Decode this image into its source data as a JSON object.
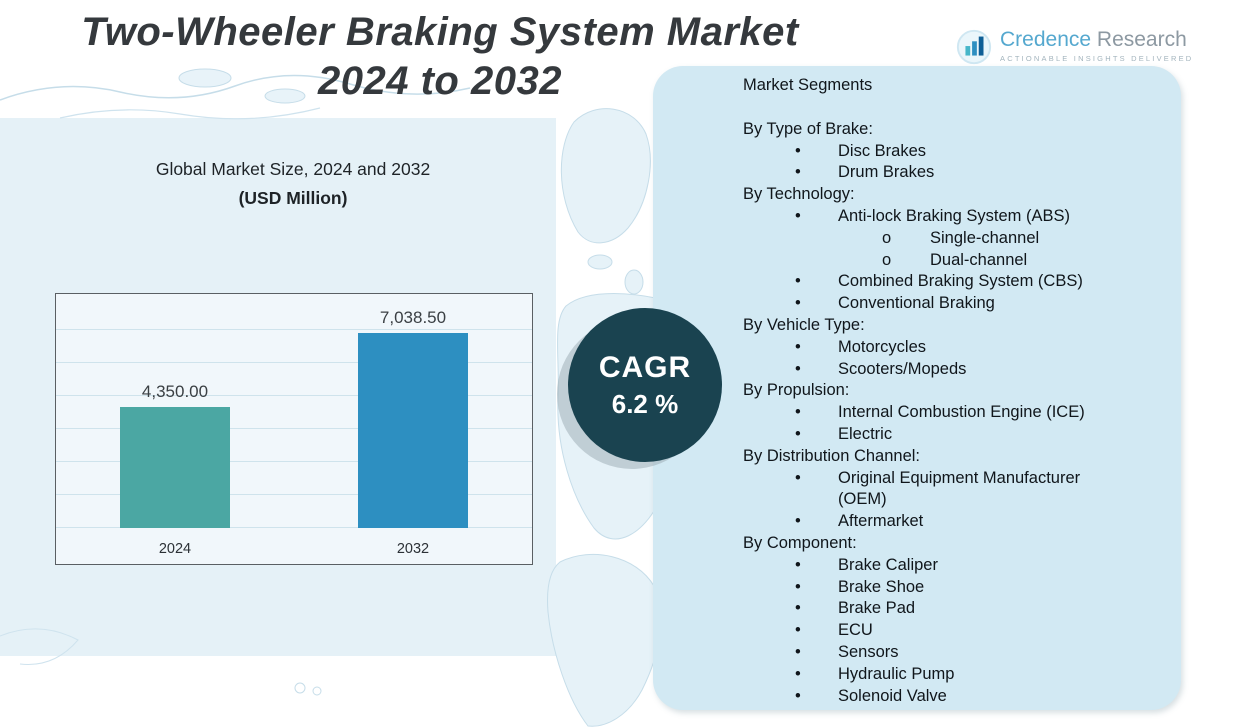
{
  "header": {
    "title_line1": "Two-Wheeler Braking System Market",
    "title_line2": "2024 to 2032",
    "logo": {
      "brand_primary": "Credence",
      "brand_secondary": "Research",
      "tagline": "Actionable Insights Delivered"
    }
  },
  "chart": {
    "caption_line1": "Global Market Size, 2024 and 2032",
    "caption_line2": "(USD Million)"
  },
  "chart_data": {
    "type": "bar",
    "categories": [
      "2024",
      "2032"
    ],
    "values": [
      4350.0,
      7038.5
    ],
    "value_labels": [
      "4,350.00",
      "7,038.50"
    ],
    "colors": [
      "#4ba7a3",
      "#2d8fc1"
    ],
    "title": "Global Market Size, 2024 and 2032",
    "subtitle": "(USD Million)",
    "xlabel": "",
    "ylabel": "",
    "ylim": [
      0,
      8000
    ],
    "grid": true,
    "legend": false
  },
  "cagr": {
    "label": "CAGR",
    "value": "6.2 %"
  },
  "segments": {
    "title": "Market Segments",
    "entries": [
      {
        "type": "heading",
        "text": "By Type of Brake:"
      },
      {
        "type": "bullet",
        "text": "Disc Brakes"
      },
      {
        "type": "bullet",
        "text": "Drum Brakes"
      },
      {
        "type": "heading",
        "text": "By Technology:"
      },
      {
        "type": "bullet",
        "text": "Anti-lock Braking System (ABS)"
      },
      {
        "type": "sub",
        "text": "Single-channel"
      },
      {
        "type": "sub",
        "text": "Dual-channel"
      },
      {
        "type": "bullet",
        "text": "Combined Braking System (CBS)"
      },
      {
        "type": "bullet",
        "text": "Conventional Braking"
      },
      {
        "type": "heading",
        "text": "By Vehicle Type:"
      },
      {
        "type": "bullet",
        "text": "Motorcycles"
      },
      {
        "type": "bullet",
        "text": "Scooters/Mopeds"
      },
      {
        "type": "heading",
        "text": "By Propulsion:"
      },
      {
        "type": "bullet",
        "text": "Internal Combustion Engine (ICE)"
      },
      {
        "type": "bullet",
        "text": "Electric"
      },
      {
        "type": "heading",
        "text": "By Distribution Channel:"
      },
      {
        "type": "bullet",
        "text": "Original Equipment Manufacturer\n(OEM)"
      },
      {
        "type": "bullet",
        "text": "Aftermarket"
      },
      {
        "type": "heading",
        "text": "By Component:"
      },
      {
        "type": "bullet",
        "text": "Brake Caliper"
      },
      {
        "type": "bullet",
        "text": "Brake Shoe"
      },
      {
        "type": "bullet",
        "text": "Brake Pad"
      },
      {
        "type": "bullet",
        "text": "ECU"
      },
      {
        "type": "bullet",
        "text": "Sensors"
      },
      {
        "type": "bullet",
        "text": "Hydraulic Pump"
      },
      {
        "type": "bullet",
        "text": "Solenoid Valve"
      }
    ]
  },
  "colors": {
    "bar_2024": "#4ba7a3",
    "bar_2032": "#2d8fc1",
    "cagr_circle": "#1a4350",
    "panel_background": "#d2e9f3",
    "map_tint": "#e0eff6"
  }
}
